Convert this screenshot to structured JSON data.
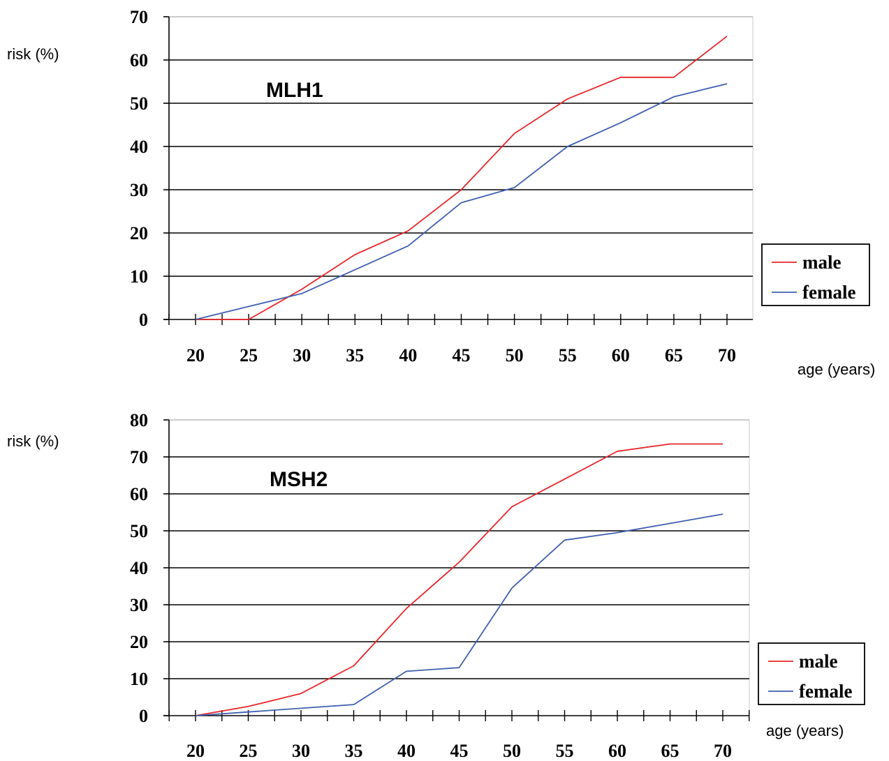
{
  "chart_data": [
    {
      "type": "line",
      "title": "MLH1",
      "xlabel": "age (years)",
      "ylabel": "risk (%)",
      "x": [
        20,
        25,
        30,
        35,
        40,
        45,
        50,
        55,
        60,
        65,
        70
      ],
      "x_tick_labels": [
        "20",
        "25",
        "30",
        "35",
        "40",
        "45",
        "50",
        "55",
        "60",
        "65",
        "70"
      ],
      "ylim": [
        0,
        70
      ],
      "y_ticks": [
        0,
        10,
        20,
        30,
        40,
        50,
        60,
        70
      ],
      "y_tick_labels": [
        "0",
        "10",
        "20",
        "30",
        "40",
        "50",
        "60",
        "70"
      ],
      "grid": "horizontal",
      "legend_position": "right",
      "series": [
        {
          "name": "male",
          "color": "#e8262b",
          "values": [
            0,
            0,
            7,
            15,
            20.5,
            30,
            43,
            51,
            56,
            56,
            65.5
          ]
        },
        {
          "name": "female",
          "color": "#3f5fae",
          "values": [
            0,
            3,
            6,
            11.5,
            17,
            27,
            30.5,
            40,
            45.5,
            51.5,
            54.5
          ]
        }
      ]
    },
    {
      "type": "line",
      "title": "MSH2",
      "xlabel": "age (years)",
      "ylabel": "risk (%)",
      "x": [
        20,
        25,
        30,
        35,
        40,
        45,
        50,
        55,
        60,
        65,
        70
      ],
      "x_tick_labels": [
        "20",
        "25",
        "30",
        "35",
        "40",
        "45",
        "50",
        "55",
        "60",
        "65",
        "70"
      ],
      "ylim": [
        0,
        80
      ],
      "y_ticks": [
        0,
        10,
        20,
        30,
        40,
        50,
        60,
        70,
        80
      ],
      "y_tick_labels": [
        "0",
        "10",
        "20",
        "30",
        "40",
        "50",
        "60",
        "70",
        "80"
      ],
      "grid": "horizontal",
      "legend_position": "right",
      "series": [
        {
          "name": "male",
          "color": "#e8262b",
          "values": [
            0,
            2.5,
            6,
            13.5,
            29,
            41.5,
            56.5,
            64,
            71.5,
            73.5,
            73.5
          ]
        },
        {
          "name": "female",
          "color": "#3f5fae",
          "values": [
            0,
            1,
            2,
            3,
            12,
            13,
            34.5,
            47.5,
            49.5,
            52,
            54.5
          ]
        }
      ]
    }
  ]
}
